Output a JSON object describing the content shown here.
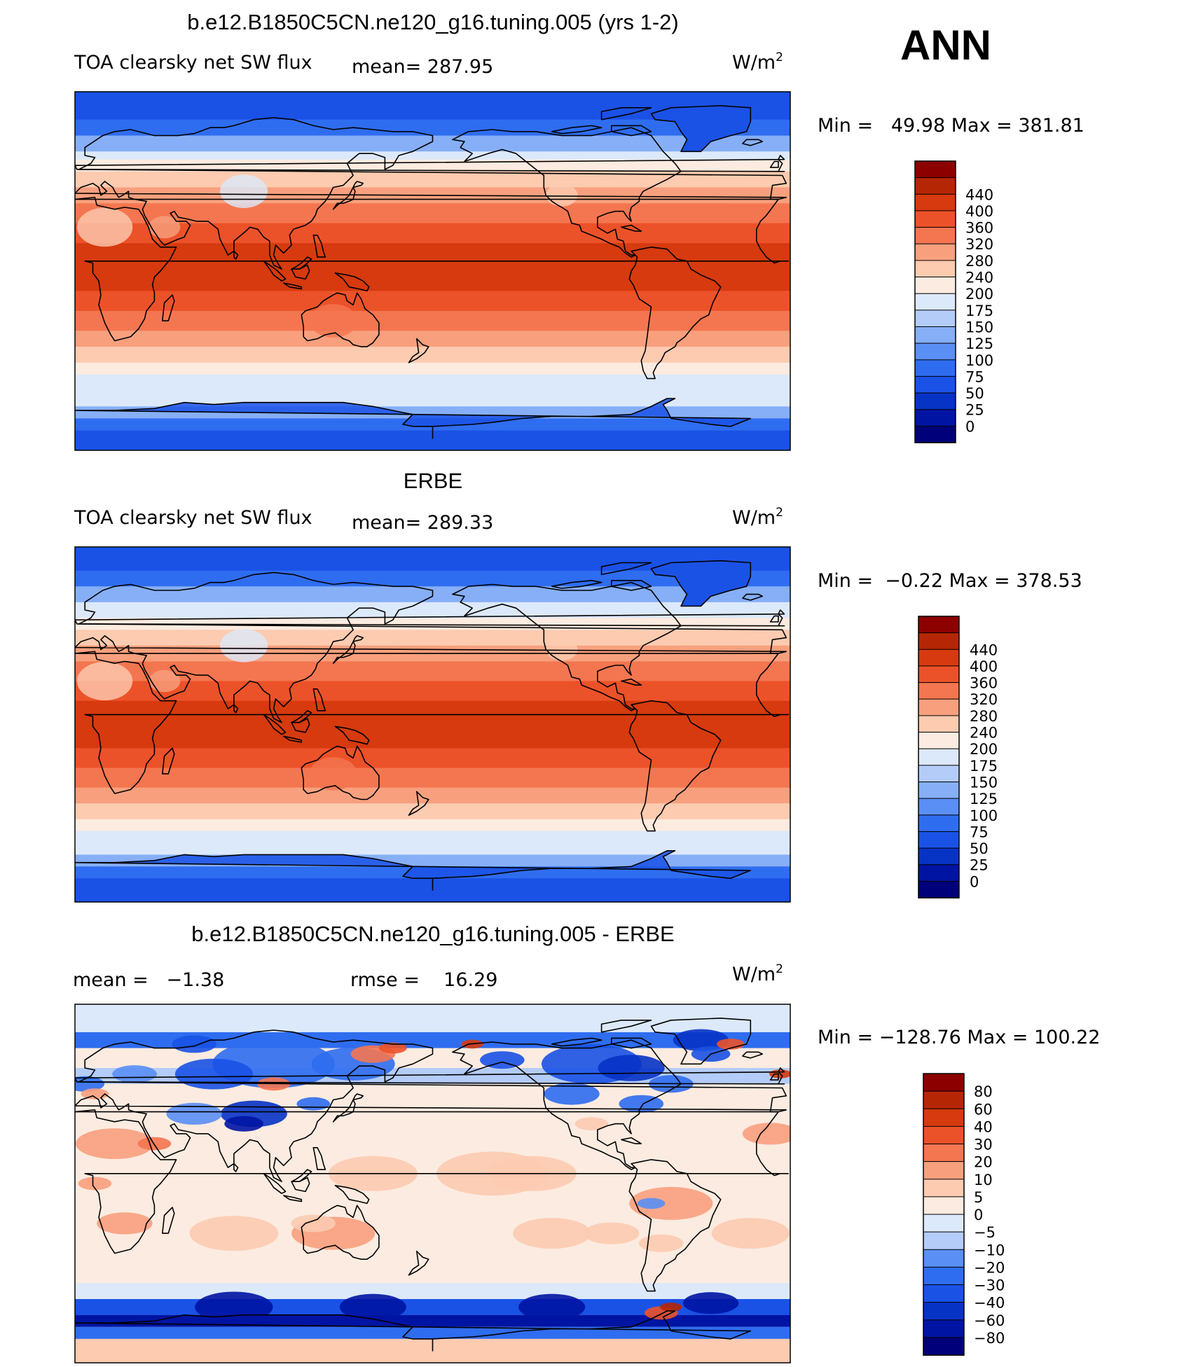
{
  "season": "ANN",
  "colors": {
    "abs": [
      "#00007a",
      "#0014a3",
      "#0733c5",
      "#1a52e6",
      "#2f6df0",
      "#5a8ff5",
      "#86aff7",
      "#b4ccf8",
      "#dce9fa",
      "#fcebe0",
      "#fccbb0",
      "#f8a07e",
      "#f47650",
      "#ec5229",
      "#d63a0e",
      "#b52605",
      "#8c0000"
    ],
    "diff": [
      "#00007a",
      "#0014a3",
      "#0733c5",
      "#1a52e6",
      "#2f6df0",
      "#5a8ff5",
      "#b4ccf8",
      "#dce9fa",
      "#fcebe0",
      "#fccbb0",
      "#f8a07e",
      "#f47650",
      "#ec5229",
      "#d63a0e",
      "#b52605",
      "#8c0000"
    ],
    "coast": "#000000"
  },
  "panels": [
    {
      "title": "b.e12.B1850C5CN.ne120_g16.tuning.005 (yrs 1-2)",
      "left_label": "TOA clearsky net SW flux",
      "mean_label": "mean= 287.95",
      "units": "W/m",
      "units_sup": "2",
      "range": "Min =   49.98 Max = 381.81",
      "levels": [
        "440",
        "400",
        "360",
        "320",
        "280",
        "240",
        "200",
        "175",
        "150",
        "125",
        "100",
        "75",
        "50",
        "25",
        "0"
      ],
      "kind": "abs",
      "field": {
        "sh_cap_lat": -68,
        "nh_cap_lat": 60,
        "tropics_peak_lat": 2
      },
      "map_data": {
        "min": 49.98,
        "max": 381.81,
        "mean": 287.95,
        "units": "W/m2"
      }
    },
    {
      "title": "ERBE",
      "left_label": "TOA clearsky net SW flux",
      "mean_label": "mean= 289.33",
      "units": "W/m",
      "units_sup": "2",
      "range": "Min =  −0.22 Max = 378.53",
      "levels": [
        "440",
        "400",
        "360",
        "320",
        "280",
        "240",
        "200",
        "175",
        "150",
        "125",
        "100",
        "75",
        "50",
        "25",
        "0"
      ],
      "kind": "abs",
      "field": {
        "sh_cap_lat": -66,
        "nh_cap_lat": 62,
        "tropics_peak_lat": 0
      },
      "map_data": {
        "min": -0.22,
        "max": 378.53,
        "mean": 289.33,
        "units": "W/m2"
      }
    },
    {
      "title": "b.e12.B1850C5CN.ne120_g16.tuning.005 - ERBE",
      "left_label": "mean =   −1.38",
      "mean_label": "rmse =    16.29",
      "units": "W/m",
      "units_sup": "2",
      "range": "Min = −128.76 Max = 100.22",
      "levels": [
        "80",
        "60",
        "40",
        "30",
        "20",
        "10",
        "5",
        "0",
        "−5",
        "−10",
        "−20",
        "−30",
        "−40",
        "−60",
        "−80"
      ],
      "kind": "diff",
      "field": {},
      "map_data": {
        "min": -128.76,
        "max": 100.22,
        "mean": -1.38,
        "rmse": 16.29,
        "units": "W/m2"
      }
    }
  ]
}
